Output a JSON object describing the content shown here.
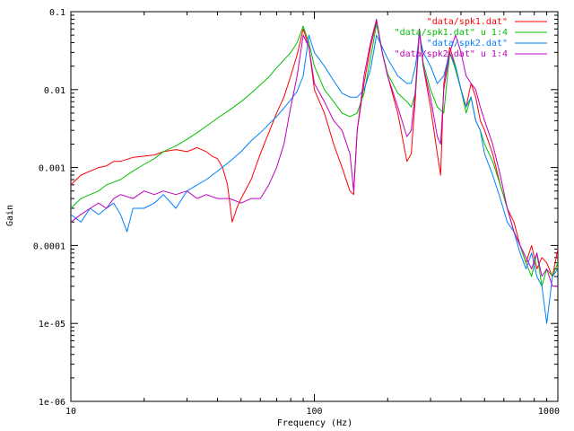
{
  "chart_data": {
    "type": "line",
    "xlabel": "Frequency (Hz)",
    "ylabel": "Gain",
    "xscale": "log",
    "yscale": "log",
    "xlim": [
      10,
      1000
    ],
    "ylim": [
      1e-06,
      0.1
    ],
    "xticks": [
      {
        "value": 10,
        "label": "10"
      },
      {
        "value": 100,
        "label": "100"
      },
      {
        "value": 1000,
        "label": "1000"
      }
    ],
    "yticks": [
      {
        "value": 1e-06,
        "label": "1e-06"
      },
      {
        "value": 1e-05,
        "label": "1e-05"
      },
      {
        "value": 0.0001,
        "label": "0.0001"
      },
      {
        "value": 0.001,
        "label": "0.001"
      },
      {
        "value": 0.01,
        "label": "0.01"
      },
      {
        "value": 0.1,
        "label": "0.1"
      }
    ],
    "grid": false,
    "legend_position": "top-right",
    "series": [
      {
        "name": "\"data/spk1.dat\"",
        "color": "#ff0000",
        "x": [
          10,
          11,
          12,
          13,
          14,
          15,
          16,
          18,
          20,
          22,
          24,
          27,
          30,
          33,
          36,
          38,
          40,
          42,
          44,
          46,
          48,
          50,
          55,
          60,
          65,
          70,
          75,
          80,
          85,
          90,
          95,
          100,
          110,
          120,
          130,
          140,
          145,
          150,
          160,
          170,
          180,
          190,
          200,
          220,
          240,
          250,
          260,
          270,
          280,
          300,
          320,
          330,
          340,
          360,
          380,
          400,
          420,
          440,
          460,
          480,
          500,
          540,
          580,
          620,
          660,
          700,
          740,
          780,
          820,
          860,
          900,
          950,
          1000
        ],
        "y": [
          0.0006,
          0.0008,
          0.0009,
          0.001,
          0.00105,
          0.0012,
          0.0012,
          0.00135,
          0.0014,
          0.00145,
          0.0016,
          0.0017,
          0.0016,
          0.0018,
          0.0016,
          0.0014,
          0.0013,
          0.001,
          0.0006,
          0.0002,
          0.0003,
          0.0004,
          0.0007,
          0.0015,
          0.0028,
          0.005,
          0.008,
          0.015,
          0.028,
          0.06,
          0.035,
          0.01,
          0.005,
          0.002,
          0.001,
          0.0005,
          0.00045,
          0.003,
          0.012,
          0.035,
          0.075,
          0.03,
          0.015,
          0.005,
          0.0012,
          0.0015,
          0.008,
          0.055,
          0.02,
          0.006,
          0.0015,
          0.0008,
          0.012,
          0.035,
          0.02,
          0.01,
          0.006,
          0.012,
          0.008,
          0.004,
          0.003,
          0.0015,
          0.0006,
          0.0003,
          0.0002,
          0.0001,
          6e-05,
          0.0001,
          5e-05,
          7e-05,
          6e-05,
          4e-05,
          9e-05
        ]
      },
      {
        "name": "\"data/spk1.dat\" u 1:4",
        "color": "#00c000",
        "x": [
          10,
          11,
          12,
          13,
          14,
          15,
          16,
          18,
          20,
          22,
          24,
          27,
          30,
          33,
          36,
          40,
          45,
          50,
          55,
          60,
          65,
          70,
          75,
          80,
          85,
          90,
          95,
          100,
          110,
          120,
          130,
          140,
          150,
          160,
          170,
          180,
          190,
          200,
          220,
          240,
          250,
          260,
          270,
          280,
          300,
          320,
          340,
          360,
          380,
          400,
          420,
          440,
          460,
          480,
          500,
          540,
          580,
          620,
          660,
          700,
          740,
          780,
          820,
          860,
          900,
          950,
          1000
        ],
        "y": [
          0.0003,
          0.0004,
          0.00045,
          0.0005,
          0.0006,
          0.00065,
          0.0007,
          0.0009,
          0.0011,
          0.0013,
          0.0016,
          0.0019,
          0.0023,
          0.0028,
          0.0034,
          0.0043,
          0.0055,
          0.007,
          0.009,
          0.0115,
          0.0145,
          0.019,
          0.024,
          0.03,
          0.04,
          0.065,
          0.04,
          0.02,
          0.01,
          0.007,
          0.005,
          0.0045,
          0.005,
          0.009,
          0.025,
          0.07,
          0.03,
          0.016,
          0.009,
          0.007,
          0.006,
          0.009,
          0.06,
          0.022,
          0.01,
          0.006,
          0.005,
          0.03,
          0.018,
          0.01,
          0.005,
          0.008,
          0.004,
          0.003,
          0.002,
          0.0012,
          0.0006,
          0.0003,
          0.00015,
          0.0001,
          6e-05,
          4e-05,
          8e-05,
          3e-05,
          5e-05,
          4e-05,
          6e-05
        ]
      },
      {
        "name": "\"data/spk2.dat\"",
        "color": "#0080ff",
        "x": [
          10,
          11,
          12,
          13,
          14,
          15,
          16,
          17,
          18,
          20,
          22,
          24,
          27,
          30,
          33,
          36,
          40,
          45,
          50,
          55,
          60,
          65,
          70,
          75,
          80,
          85,
          90,
          95,
          100,
          110,
          120,
          130,
          140,
          150,
          160,
          170,
          180,
          190,
          200,
          220,
          240,
          250,
          260,
          270,
          280,
          300,
          320,
          340,
          360,
          380,
          400,
          420,
          440,
          460,
          480,
          500,
          540,
          580,
          620,
          660,
          700,
          740,
          780,
          820,
          860,
          900,
          950,
          1000
        ],
        "y": [
          0.00025,
          0.0002,
          0.0003,
          0.00025,
          0.0003,
          0.00035,
          0.00025,
          0.00015,
          0.0003,
          0.0003,
          0.00035,
          0.00045,
          0.0003,
          0.0005,
          0.0006,
          0.0007,
          0.0009,
          0.0012,
          0.0016,
          0.0022,
          0.0028,
          0.0036,
          0.0045,
          0.0058,
          0.0074,
          0.0095,
          0.015,
          0.05,
          0.03,
          0.02,
          0.013,
          0.009,
          0.008,
          0.008,
          0.01,
          0.018,
          0.05,
          0.035,
          0.025,
          0.015,
          0.012,
          0.012,
          0.02,
          0.05,
          0.03,
          0.02,
          0.012,
          0.015,
          0.03,
          0.02,
          0.01,
          0.006,
          0.008,
          0.004,
          0.003,
          0.0015,
          0.0008,
          0.0004,
          0.0002,
          0.00015,
          8e-05,
          5e-05,
          8e-05,
          4e-05,
          3e-05,
          1e-05,
          4e-05,
          5e-05
        ]
      },
      {
        "name": "\"data/spk2.dat\" u 1:4",
        "color": "#c000c0",
        "x": [
          10,
          11,
          12,
          13,
          14,
          15,
          16,
          18,
          20,
          22,
          24,
          27,
          30,
          33,
          36,
          40,
          45,
          50,
          55,
          60,
          65,
          70,
          75,
          80,
          85,
          90,
          95,
          100,
          110,
          120,
          130,
          140,
          145,
          150,
          160,
          170,
          180,
          190,
          200,
          220,
          240,
          250,
          260,
          270,
          280,
          300,
          320,
          330,
          340,
          360,
          380,
          400,
          420,
          440,
          460,
          480,
          500,
          540,
          580,
          620,
          660,
          700,
          740,
          780,
          820,
          860,
          900,
          950,
          1000
        ],
        "y": [
          0.0002,
          0.00025,
          0.0003,
          0.00035,
          0.0003,
          0.0004,
          0.00045,
          0.0004,
          0.0005,
          0.00045,
          0.0005,
          0.00045,
          0.0005,
          0.0004,
          0.00045,
          0.0004,
          0.0004,
          0.00035,
          0.0004,
          0.0004,
          0.0006,
          0.001,
          0.002,
          0.006,
          0.015,
          0.05,
          0.035,
          0.012,
          0.007,
          0.004,
          0.003,
          0.0015,
          0.0005,
          0.003,
          0.015,
          0.04,
          0.08,
          0.03,
          0.015,
          0.006,
          0.0025,
          0.003,
          0.01,
          0.06,
          0.02,
          0.008,
          0.0025,
          0.002,
          0.01,
          0.03,
          0.05,
          0.03,
          0.015,
          0.012,
          0.01,
          0.006,
          0.004,
          0.002,
          0.0008,
          0.0003,
          0.00015,
          0.0001,
          7e-05,
          5e-05,
          8e-05,
          4e-05,
          5e-05,
          3e-05,
          3e-05
        ]
      }
    ]
  }
}
